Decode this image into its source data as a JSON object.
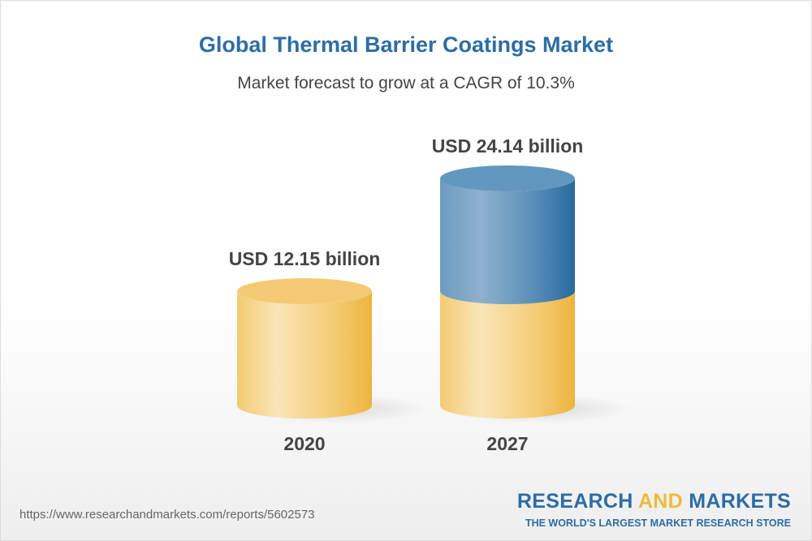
{
  "chart_data": {
    "type": "bar",
    "title": "Global Thermal Barrier Coatings Market",
    "subtitle": "Market forecast to grow at a CAGR of 10.3%",
    "categories": [
      "2020",
      "2027"
    ],
    "values": [
      12.15,
      24.14
    ],
    "data_labels": [
      "USD 12.15 billion",
      "USD 24.14 billion"
    ],
    "style": "3d-cylinder",
    "colors": {
      "base": "#f2c25a",
      "growth": "#3a78aa"
    }
  },
  "footer": {
    "url": "https://www.researchandmarkets.com/reports/5602573",
    "logo_research": "RESEARCH",
    "logo_and": "AND",
    "logo_markets": "MARKETS",
    "logo_tagline": "THE WORLD'S LARGEST MARKET RESEARCH STORE"
  }
}
